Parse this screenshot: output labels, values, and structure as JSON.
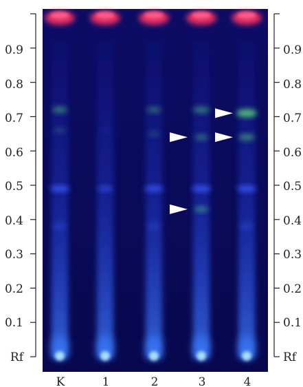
{
  "rf_scale": {
    "ticks": [
      "0.9",
      "0.8",
      "0.7",
      "0.6",
      "0.5",
      "0.4",
      "0.3",
      "0.2",
      "0.1"
    ],
    "origin_label": "Rf"
  },
  "lanes": [
    "K",
    "1",
    "2",
    "3",
    "4"
  ],
  "colors": {
    "plate_background": "#0a0a5c",
    "solvent_front": "#ff3060",
    "blue_band": "#3a5cff",
    "green_band": "#4fc07a",
    "origin_spot": "#aee4ff",
    "arrow": "#ffffff"
  },
  "markers": [
    {
      "lane": "3",
      "rf": 0.64,
      "icon": "arrow-right-icon"
    },
    {
      "lane": "3",
      "rf": 0.43,
      "icon": "arrow-right-icon"
    },
    {
      "lane": "4",
      "rf": 0.71,
      "icon": "arrow-left-icon"
    },
    {
      "lane": "4",
      "rf": 0.64,
      "icon": "arrow-left-icon"
    }
  ]
}
